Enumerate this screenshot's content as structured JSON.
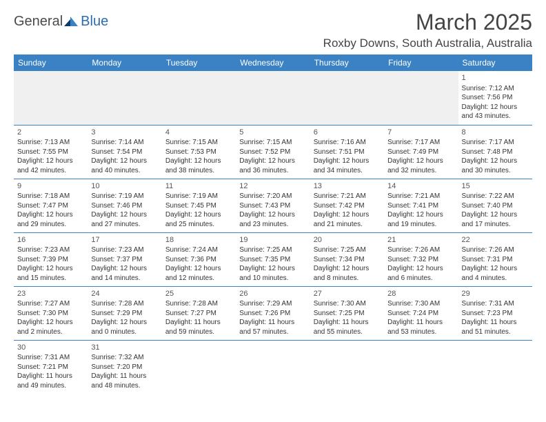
{
  "logo": {
    "general": "General",
    "blue": "Blue",
    "icon_color_dark": "#0b3a6b",
    "icon_color_light": "#3b82c4"
  },
  "title": "March 2025",
  "location": "Roxby Downs, South Australia, Australia",
  "colors": {
    "header_bg": "#3b82c4",
    "header_text": "#ffffff",
    "rule": "#3b82c4",
    "empty_bg": "#f0f0f0"
  },
  "day_headers": [
    "Sunday",
    "Monday",
    "Tuesday",
    "Wednesday",
    "Thursday",
    "Friday",
    "Saturday"
  ],
  "weeks": [
    [
      null,
      null,
      null,
      null,
      null,
      null,
      {
        "n": "1",
        "sr": "7:12 AM",
        "ss": "7:56 PM",
        "dl": "12 hours and 43 minutes."
      }
    ],
    [
      {
        "n": "2",
        "sr": "7:13 AM",
        "ss": "7:55 PM",
        "dl": "12 hours and 42 minutes."
      },
      {
        "n": "3",
        "sr": "7:14 AM",
        "ss": "7:54 PM",
        "dl": "12 hours and 40 minutes."
      },
      {
        "n": "4",
        "sr": "7:15 AM",
        "ss": "7:53 PM",
        "dl": "12 hours and 38 minutes."
      },
      {
        "n": "5",
        "sr": "7:15 AM",
        "ss": "7:52 PM",
        "dl": "12 hours and 36 minutes."
      },
      {
        "n": "6",
        "sr": "7:16 AM",
        "ss": "7:51 PM",
        "dl": "12 hours and 34 minutes."
      },
      {
        "n": "7",
        "sr": "7:17 AM",
        "ss": "7:49 PM",
        "dl": "12 hours and 32 minutes."
      },
      {
        "n": "8",
        "sr": "7:17 AM",
        "ss": "7:48 PM",
        "dl": "12 hours and 30 minutes."
      }
    ],
    [
      {
        "n": "9",
        "sr": "7:18 AM",
        "ss": "7:47 PM",
        "dl": "12 hours and 29 minutes."
      },
      {
        "n": "10",
        "sr": "7:19 AM",
        "ss": "7:46 PM",
        "dl": "12 hours and 27 minutes."
      },
      {
        "n": "11",
        "sr": "7:19 AM",
        "ss": "7:45 PM",
        "dl": "12 hours and 25 minutes."
      },
      {
        "n": "12",
        "sr": "7:20 AM",
        "ss": "7:43 PM",
        "dl": "12 hours and 23 minutes."
      },
      {
        "n": "13",
        "sr": "7:21 AM",
        "ss": "7:42 PM",
        "dl": "12 hours and 21 minutes."
      },
      {
        "n": "14",
        "sr": "7:21 AM",
        "ss": "7:41 PM",
        "dl": "12 hours and 19 minutes."
      },
      {
        "n": "15",
        "sr": "7:22 AM",
        "ss": "7:40 PM",
        "dl": "12 hours and 17 minutes."
      }
    ],
    [
      {
        "n": "16",
        "sr": "7:23 AM",
        "ss": "7:39 PM",
        "dl": "12 hours and 15 minutes."
      },
      {
        "n": "17",
        "sr": "7:23 AM",
        "ss": "7:37 PM",
        "dl": "12 hours and 14 minutes."
      },
      {
        "n": "18",
        "sr": "7:24 AM",
        "ss": "7:36 PM",
        "dl": "12 hours and 12 minutes."
      },
      {
        "n": "19",
        "sr": "7:25 AM",
        "ss": "7:35 PM",
        "dl": "12 hours and 10 minutes."
      },
      {
        "n": "20",
        "sr": "7:25 AM",
        "ss": "7:34 PM",
        "dl": "12 hours and 8 minutes."
      },
      {
        "n": "21",
        "sr": "7:26 AM",
        "ss": "7:32 PM",
        "dl": "12 hours and 6 minutes."
      },
      {
        "n": "22",
        "sr": "7:26 AM",
        "ss": "7:31 PM",
        "dl": "12 hours and 4 minutes."
      }
    ],
    [
      {
        "n": "23",
        "sr": "7:27 AM",
        "ss": "7:30 PM",
        "dl": "12 hours and 2 minutes."
      },
      {
        "n": "24",
        "sr": "7:28 AM",
        "ss": "7:29 PM",
        "dl": "12 hours and 0 minutes."
      },
      {
        "n": "25",
        "sr": "7:28 AM",
        "ss": "7:27 PM",
        "dl": "11 hours and 59 minutes."
      },
      {
        "n": "26",
        "sr": "7:29 AM",
        "ss": "7:26 PM",
        "dl": "11 hours and 57 minutes."
      },
      {
        "n": "27",
        "sr": "7:30 AM",
        "ss": "7:25 PM",
        "dl": "11 hours and 55 minutes."
      },
      {
        "n": "28",
        "sr": "7:30 AM",
        "ss": "7:24 PM",
        "dl": "11 hours and 53 minutes."
      },
      {
        "n": "29",
        "sr": "7:31 AM",
        "ss": "7:23 PM",
        "dl": "11 hours and 51 minutes."
      }
    ],
    [
      {
        "n": "30",
        "sr": "7:31 AM",
        "ss": "7:21 PM",
        "dl": "11 hours and 49 minutes."
      },
      {
        "n": "31",
        "sr": "7:32 AM",
        "ss": "7:20 PM",
        "dl": "11 hours and 48 minutes."
      },
      null,
      null,
      null,
      null,
      null
    ]
  ],
  "labels": {
    "sunrise": "Sunrise:",
    "sunset": "Sunset:",
    "daylight": "Daylight:"
  }
}
